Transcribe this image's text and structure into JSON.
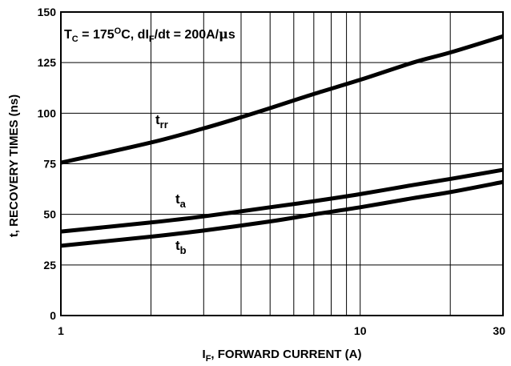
{
  "chart_data": {
    "type": "line",
    "x_scale": "log",
    "x_range": [
      1,
      30
    ],
    "y_range": [
      0,
      150
    ],
    "grid": true,
    "x_ticks": [
      1,
      10,
      30
    ],
    "x_tick_labels": [
      "1",
      "10",
      "30"
    ],
    "x_minor_gridlines": [
      2,
      3,
      4,
      5,
      6,
      7,
      8,
      9,
      20
    ],
    "y_ticks": [
      0,
      25,
      50,
      75,
      100,
      125,
      150
    ],
    "y_tick_labels": [
      "0",
      "25",
      "50",
      "75",
      "100",
      "125",
      "150"
    ],
    "xlabel_main": "I",
    "xlabel_sub": "F",
    "xlabel_rest": ", FORWARD CURRENT (A)",
    "ylabel": "t, RECOVERY TIMES (ns)",
    "annotation": {
      "t_main": "T",
      "t_sub": "C",
      "t_eq": " = 175",
      "t_sup": "O",
      "t_rest": "C, dI",
      "di_sub": "F",
      "di_rest": "/dt = 200A/",
      "mu": "μ",
      "s": "s"
    },
    "series": [
      {
        "label_main": "t",
        "label_sub": "rr",
        "x": [
          1,
          2,
          3,
          4,
          5,
          7,
          10,
          15,
          20,
          30
        ],
        "y": [
          75.5,
          85.5,
          92.5,
          98,
          102.5,
          109.5,
          116.5,
          125,
          130,
          138
        ]
      },
      {
        "label_main": "t",
        "label_sub": "a",
        "x": [
          1,
          2,
          3,
          5,
          7,
          10,
          15,
          20,
          30
        ],
        "y": [
          41.5,
          46,
          49,
          53.5,
          56.5,
          60,
          64.5,
          67.5,
          72
        ]
      },
      {
        "label_main": "t",
        "label_sub": "b",
        "x": [
          1,
          2,
          3,
          5,
          7,
          10,
          15,
          20,
          30
        ],
        "y": [
          34.5,
          39,
          42,
          46.5,
          50,
          53.5,
          58,
          61,
          66
        ]
      }
    ]
  }
}
